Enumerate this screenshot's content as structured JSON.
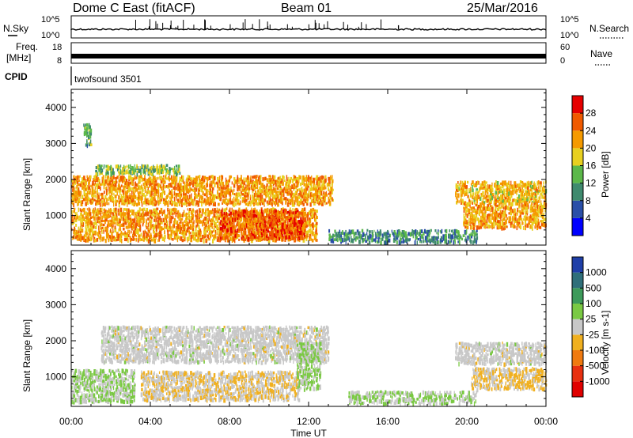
{
  "header": {
    "title": "Dome C East (fitACF)",
    "beam": "Beam 01",
    "date": "25/Mar/2016"
  },
  "top_panels": {
    "nsky_label": "N.Sky",
    "nsky_ticks": [
      "10^5",
      "10^0"
    ],
    "nsearch_label": "N.Search",
    "nsearch_ticks": [
      "10^5",
      "10^0"
    ],
    "freq_label_line1": "Freq.",
    "freq_label_line2": "[MHz]",
    "freq_ticks": [
      "18",
      "8"
    ],
    "nave_label": "Nave",
    "nave_ticks": [
      "60",
      "0"
    ],
    "cpid_label": "CPID",
    "cpid_value": "twofsound 3501"
  },
  "power_panel": {
    "ylabel": "Slant Range [km]",
    "yticks": [
      "4000",
      "3000",
      "2000",
      "1000"
    ],
    "colorbar_label": "Power [dB]",
    "colorbar_ticks": [
      "28",
      "24",
      "20",
      "16",
      "12",
      "8",
      "4"
    ],
    "colors": [
      "#0000ff",
      "#2a4fa8",
      "#3f8a6e",
      "#5cb84a",
      "#e8d020",
      "#f59a00",
      "#f05a00",
      "#e60000"
    ]
  },
  "velocity_panel": {
    "ylabel": "Slant Range [km]",
    "yticks": [
      "4000",
      "3000",
      "2000",
      "1000"
    ],
    "colorbar_label": "Velocity [m s-1]",
    "colorbar_ticks": [
      "1000",
      "500",
      "100",
      "25",
      "-25",
      "-100",
      "-500",
      "-1000"
    ],
    "colors": [
      "#1f3fa8",
      "#2f6f7a",
      "#3d9a5a",
      "#7ac943",
      "#c8c8c8",
      "#f0b020",
      "#f07a10",
      "#e83010",
      "#e00000"
    ]
  },
  "x_axis": {
    "xlabel": "Time UT",
    "xticks": [
      "00:00",
      "04:00",
      "08:00",
      "12:00",
      "16:00",
      "20:00",
      "00:00"
    ]
  },
  "chart_data": [
    {
      "type": "heatmap",
      "title": "Power [dB]",
      "xlabel": "Time UT",
      "ylabel": "Slant Range [km]",
      "xlim": [
        0,
        24
      ],
      "ylim": [
        180,
        4500
      ],
      "clim": [
        0,
        32
      ],
      "x": [
        "00:00",
        "04:00",
        "08:00",
        "12:00",
        "16:00",
        "20:00",
        "00:00"
      ],
      "regions": [
        {
          "t0": 0.0,
          "t1": 13.2,
          "r0": 1350,
          "r1": 2150,
          "value": 22
        },
        {
          "t0": 0.0,
          "t1": 12.4,
          "r0": 350,
          "r1": 1250,
          "value": 22
        },
        {
          "t0": 7.5,
          "t1": 11.8,
          "r0": 400,
          "r1": 1200,
          "value": 26
        },
        {
          "t0": 1.2,
          "t1": 5.5,
          "r0": 2200,
          "r1": 2450,
          "value": 14
        },
        {
          "t0": 0.6,
          "t1": 1.0,
          "r0": 3000,
          "r1": 3600,
          "value": 12
        },
        {
          "t0": 13.0,
          "t1": 20.5,
          "r0": 300,
          "r1": 650,
          "value": 10
        },
        {
          "t0": 19.4,
          "t1": 24.0,
          "r0": 1400,
          "r1": 2000,
          "value": 20
        },
        {
          "t0": 19.8,
          "t1": 24.0,
          "r0": 700,
          "r1": 1400,
          "value": 22
        }
      ]
    },
    {
      "type": "heatmap",
      "title": "Velocity [m s-1]",
      "xlabel": "Time UT",
      "ylabel": "Slant Range [km]",
      "xlim": [
        0,
        24
      ],
      "ylim": [
        180,
        4500
      ],
      "clim": [
        -1000,
        1000
      ],
      "x": [
        "00:00",
        "04:00",
        "08:00",
        "12:00",
        "16:00",
        "20:00",
        "00:00"
      ],
      "regions": [
        {
          "t0": 1.5,
          "t1": 13.0,
          "r0": 1450,
          "r1": 2450,
          "value": 0
        },
        {
          "t0": 3.5,
          "t1": 11.5,
          "r0": 400,
          "r1": 1200,
          "value": -100
        },
        {
          "t0": 0.0,
          "t1": 3.2,
          "r0": 350,
          "r1": 1250,
          "value": 120
        },
        {
          "t0": 11.4,
          "t1": 12.6,
          "r0": 700,
          "r1": 2000,
          "value": 150
        },
        {
          "t0": 19.4,
          "t1": 24.0,
          "r0": 1400,
          "r1": 2000,
          "value": 0
        },
        {
          "t0": 20.2,
          "t1": 24.0,
          "r0": 700,
          "r1": 1300,
          "value": -150
        },
        {
          "t0": 14.0,
          "t1": 20.5,
          "r0": 300,
          "r1": 650,
          "value": 100
        }
      ]
    }
  ]
}
